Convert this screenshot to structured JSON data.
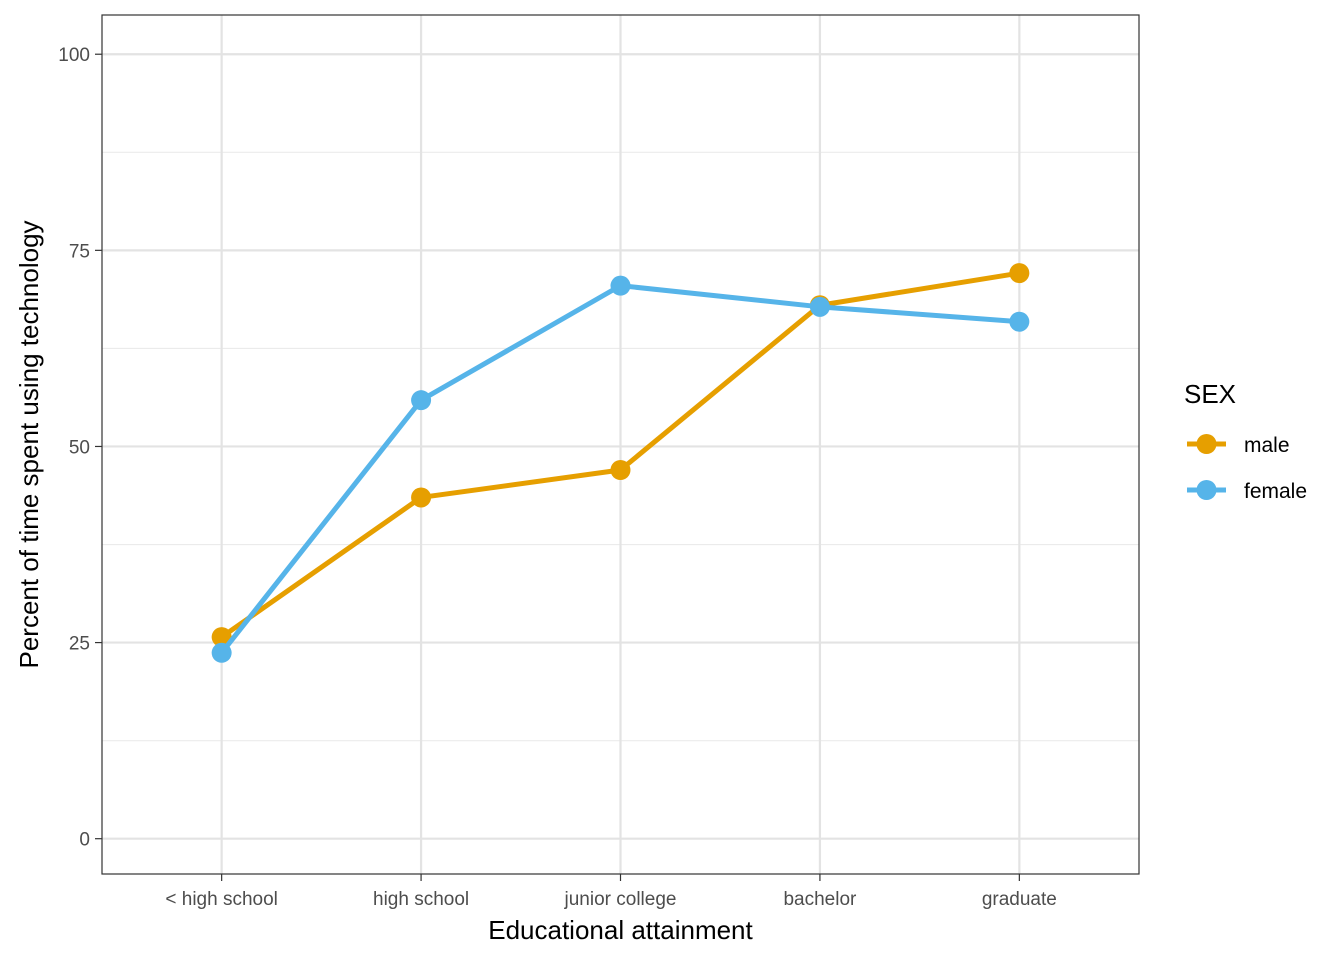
{
  "chart_data": {
    "type": "line",
    "title": "",
    "xlabel": "Educational attainment",
    "ylabel": "Percent of time spent using technology",
    "categories": [
      "< high school",
      "high school",
      "junior college",
      "bachelor",
      "graduate"
    ],
    "ylim": [
      -4.5,
      105
    ],
    "yticks": [
      0,
      25,
      50,
      75,
      100
    ],
    "yticks_minor": [
      12.5,
      37.5,
      62.5,
      87.5
    ],
    "grid": true,
    "legend": {
      "title": "SEX",
      "position": "right"
    },
    "series": [
      {
        "name": "male",
        "color": "#E69F00",
        "values": [
          25.7,
          43.5,
          47.0,
          68.0,
          72.1
        ]
      },
      {
        "name": "female",
        "color": "#56B4E9",
        "values": [
          23.7,
          55.9,
          70.5,
          67.8,
          65.9
        ]
      }
    ]
  }
}
